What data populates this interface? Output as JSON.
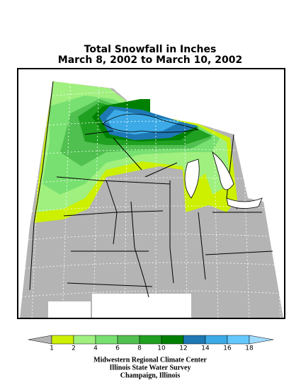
{
  "title": {
    "line1": "Total Snowfall in Inches",
    "line2": "March 8, 2002 to March 10, 2002"
  },
  "legend": {
    "ticks": [
      1,
      2,
      4,
      6,
      8,
      10,
      12,
      14,
      16,
      18
    ],
    "colors": [
      "#b4b4b4",
      "#ccf000",
      "#a0f080",
      "#78e070",
      "#50c050",
      "#20a020",
      "#008000",
      "#1e78b4",
      "#3caae6",
      "#64c8ff",
      "#a0dcff"
    ]
  },
  "credits": [
    "Midwestern Regional Climate Center",
    "Illinois State Water Survey",
    "Champaign, Illinois"
  ]
}
